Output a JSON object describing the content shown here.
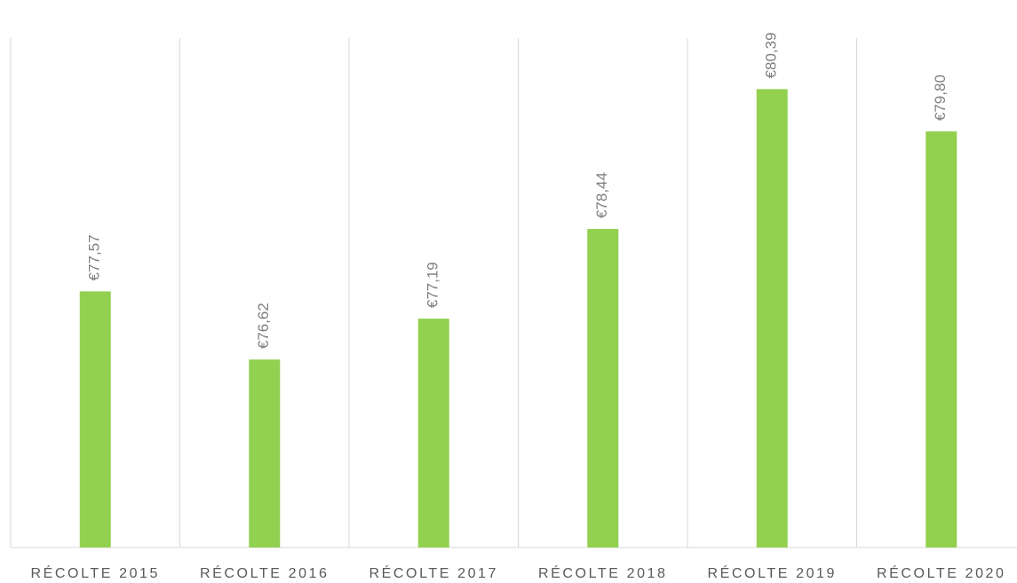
{
  "chart_data": {
    "type": "bar",
    "categories": [
      "RÉCOLTE 2015",
      "RÉCOLTE 2016",
      "RÉCOLTE 2017",
      "RÉCOLTE 2018",
      "RÉCOLTE 2019",
      "RÉCOLTE 2020"
    ],
    "values": [
      77.57,
      76.62,
      77.19,
      78.44,
      80.39,
      79.8
    ],
    "value_labels": [
      "€77,57",
      "€76,62",
      "€77,19",
      "€78,44",
      "€80,39",
      "€79,80"
    ],
    "color": "#92d050",
    "ylim": [
      74,
      81.1
    ],
    "grid": true
  }
}
